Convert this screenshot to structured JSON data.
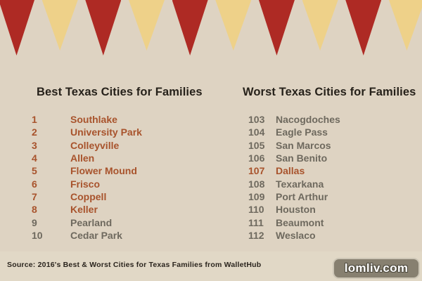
{
  "colors": {
    "background": "#ded3c2",
    "footer_band": "#e1d8c6",
    "red": "#ae2a24",
    "yellow": "#eed189",
    "highlight": "#a8532c",
    "muted": "#6e695e",
    "title_color": "#26211a",
    "source_color": "#2b251e",
    "badge_bg": "#878070",
    "badge_border": "#cdc6b6",
    "badge_text": "#ffffff"
  },
  "bunting": {
    "pattern": [
      "red",
      "yellow",
      "red",
      "yellow",
      "red",
      "yellow",
      "red",
      "yellow",
      "red",
      "yellow"
    ]
  },
  "best": {
    "title": "Best Texas Cities for Families",
    "items": [
      {
        "rank": "1",
        "city": "Southlake",
        "highlight": true
      },
      {
        "rank": "2",
        "city": "University Park",
        "highlight": true
      },
      {
        "rank": "3",
        "city": "Colleyville",
        "highlight": true
      },
      {
        "rank": "4",
        "city": "Allen",
        "highlight": true
      },
      {
        "rank": "5",
        "city": "Flower Mound",
        "highlight": true
      },
      {
        "rank": "6",
        "city": "Frisco",
        "highlight": true
      },
      {
        "rank": "7",
        "city": "Coppell",
        "highlight": true
      },
      {
        "rank": "8",
        "city": "Keller",
        "highlight": true
      },
      {
        "rank": "9",
        "city": "Pearland",
        "highlight": false
      },
      {
        "rank": "10",
        "city": "Cedar Park",
        "highlight": false
      }
    ]
  },
  "worst": {
    "title": "Worst Texas Cities for Families",
    "items": [
      {
        "rank": "103",
        "city": "Nacogdoches",
        "highlight": false
      },
      {
        "rank": "104",
        "city": "Eagle Pass",
        "highlight": false
      },
      {
        "rank": "105",
        "city": "San Marcos",
        "highlight": false
      },
      {
        "rank": "106",
        "city": "San Benito",
        "highlight": false
      },
      {
        "rank": "107",
        "city": "Dallas",
        "highlight": true
      },
      {
        "rank": "108",
        "city": "Texarkana",
        "highlight": false
      },
      {
        "rank": "109",
        "city": "Port Arthur",
        "highlight": false
      },
      {
        "rank": "110",
        "city": "Houston",
        "highlight": false
      },
      {
        "rank": "111",
        "city": "Beaumont",
        "highlight": false
      },
      {
        "rank": "112",
        "city": "Weslaco",
        "highlight": false
      }
    ]
  },
  "footer": {
    "source": "Source: 2016's Best & Worst Cities for Texas Families from WalletHub",
    "watermark": "lomliv.com"
  }
}
